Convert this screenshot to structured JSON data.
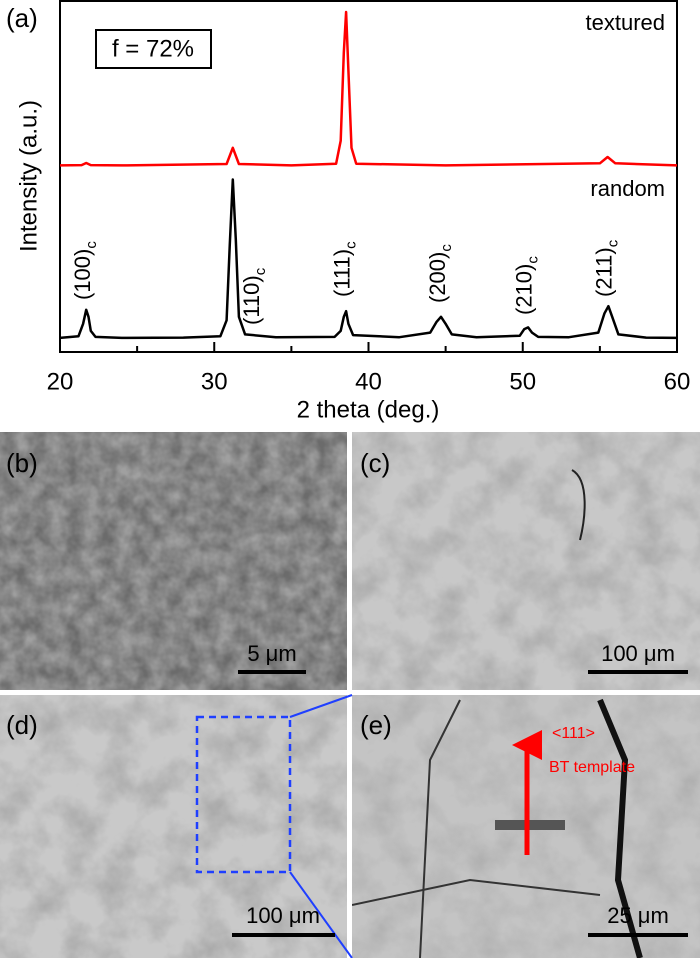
{
  "chart_data": {
    "type": "line",
    "panel_label": "(a)",
    "xlabel": "2 theta (deg.)",
    "ylabel": "Intensity (a.u.)",
    "xlim": [
      20,
      60
    ],
    "xticks": [
      20,
      30,
      40,
      50,
      60
    ],
    "ylim": [
      0,
      100
    ],
    "annotation": "f = 72%",
    "series": [
      {
        "name": "textured",
        "color": "#ff0000",
        "x": [
          20,
          21.4,
          21.7,
          22.0,
          24,
          30.8,
          31.2,
          31.6,
          35,
          37.9,
          38.2,
          38.4,
          38.55,
          38.7,
          38.9,
          39.2,
          45,
          55.0,
          55.5,
          56.0,
          60
        ],
        "values": [
          53,
          53.1,
          53.7,
          53.1,
          53,
          53.4,
          58,
          53.4,
          53,
          53.5,
          60,
          85,
          96.6,
          80,
          58,
          53.5,
          53,
          53.6,
          55.4,
          53.6,
          53
        ]
      },
      {
        "name": "random",
        "color": "#000000",
        "x": [
          20,
          21.2,
          21.5,
          21.7,
          21.85,
          22.0,
          22.3,
          24,
          28,
          30.4,
          30.8,
          31.0,
          31.2,
          31.4,
          31.6,
          32.0,
          34,
          37.8,
          38.2,
          38.4,
          38.55,
          38.7,
          39.0,
          42,
          44.0,
          44.4,
          44.7,
          45.0,
          45.4,
          47,
          49.8,
          50.1,
          50.35,
          50.6,
          51.0,
          53,
          54.9,
          55.3,
          55.55,
          55.8,
          56.2,
          58,
          60
        ],
        "values": [
          4,
          4.5,
          8,
          12,
          10,
          6,
          4.3,
          4,
          4.1,
          4.5,
          9,
          30,
          49,
          32,
          10,
          5,
          4.2,
          4.3,
          6,
          10,
          11.6,
          8,
          4.8,
          4.2,
          5.5,
          8.5,
          10,
          8,
          5,
          4.2,
          4.6,
          6.5,
          7,
          5.5,
          4.3,
          4.2,
          5.5,
          11,
          13,
          10,
          5,
          4.1,
          4
        ]
      }
    ],
    "peak_labels": [
      {
        "text": "(100)",
        "subscript": "c",
        "x": 21.7
      },
      {
        "text": "(110)",
        "subscript": "c",
        "x": 31.2
      },
      {
        "text": "(111)",
        "subscript": "c",
        "x": 38.5
      },
      {
        "text": "(200)",
        "subscript": "c",
        "x": 44.7
      },
      {
        "text": "(210)",
        "subscript": "c",
        "x": 50.3
      },
      {
        "text": "(211)",
        "subscript": "c",
        "x": 55.5
      }
    ]
  },
  "panels": [
    {
      "label": "(b)",
      "scale_bar": "5 μm"
    },
    {
      "label": "(c)",
      "scale_bar": "100 μm"
    },
    {
      "label": "(d)",
      "scale_bar": "100 μm"
    },
    {
      "label": "(e)",
      "scale_bar": "25 μm",
      "annotation_1": "<111>",
      "annotation_2": "BT template"
    }
  ]
}
